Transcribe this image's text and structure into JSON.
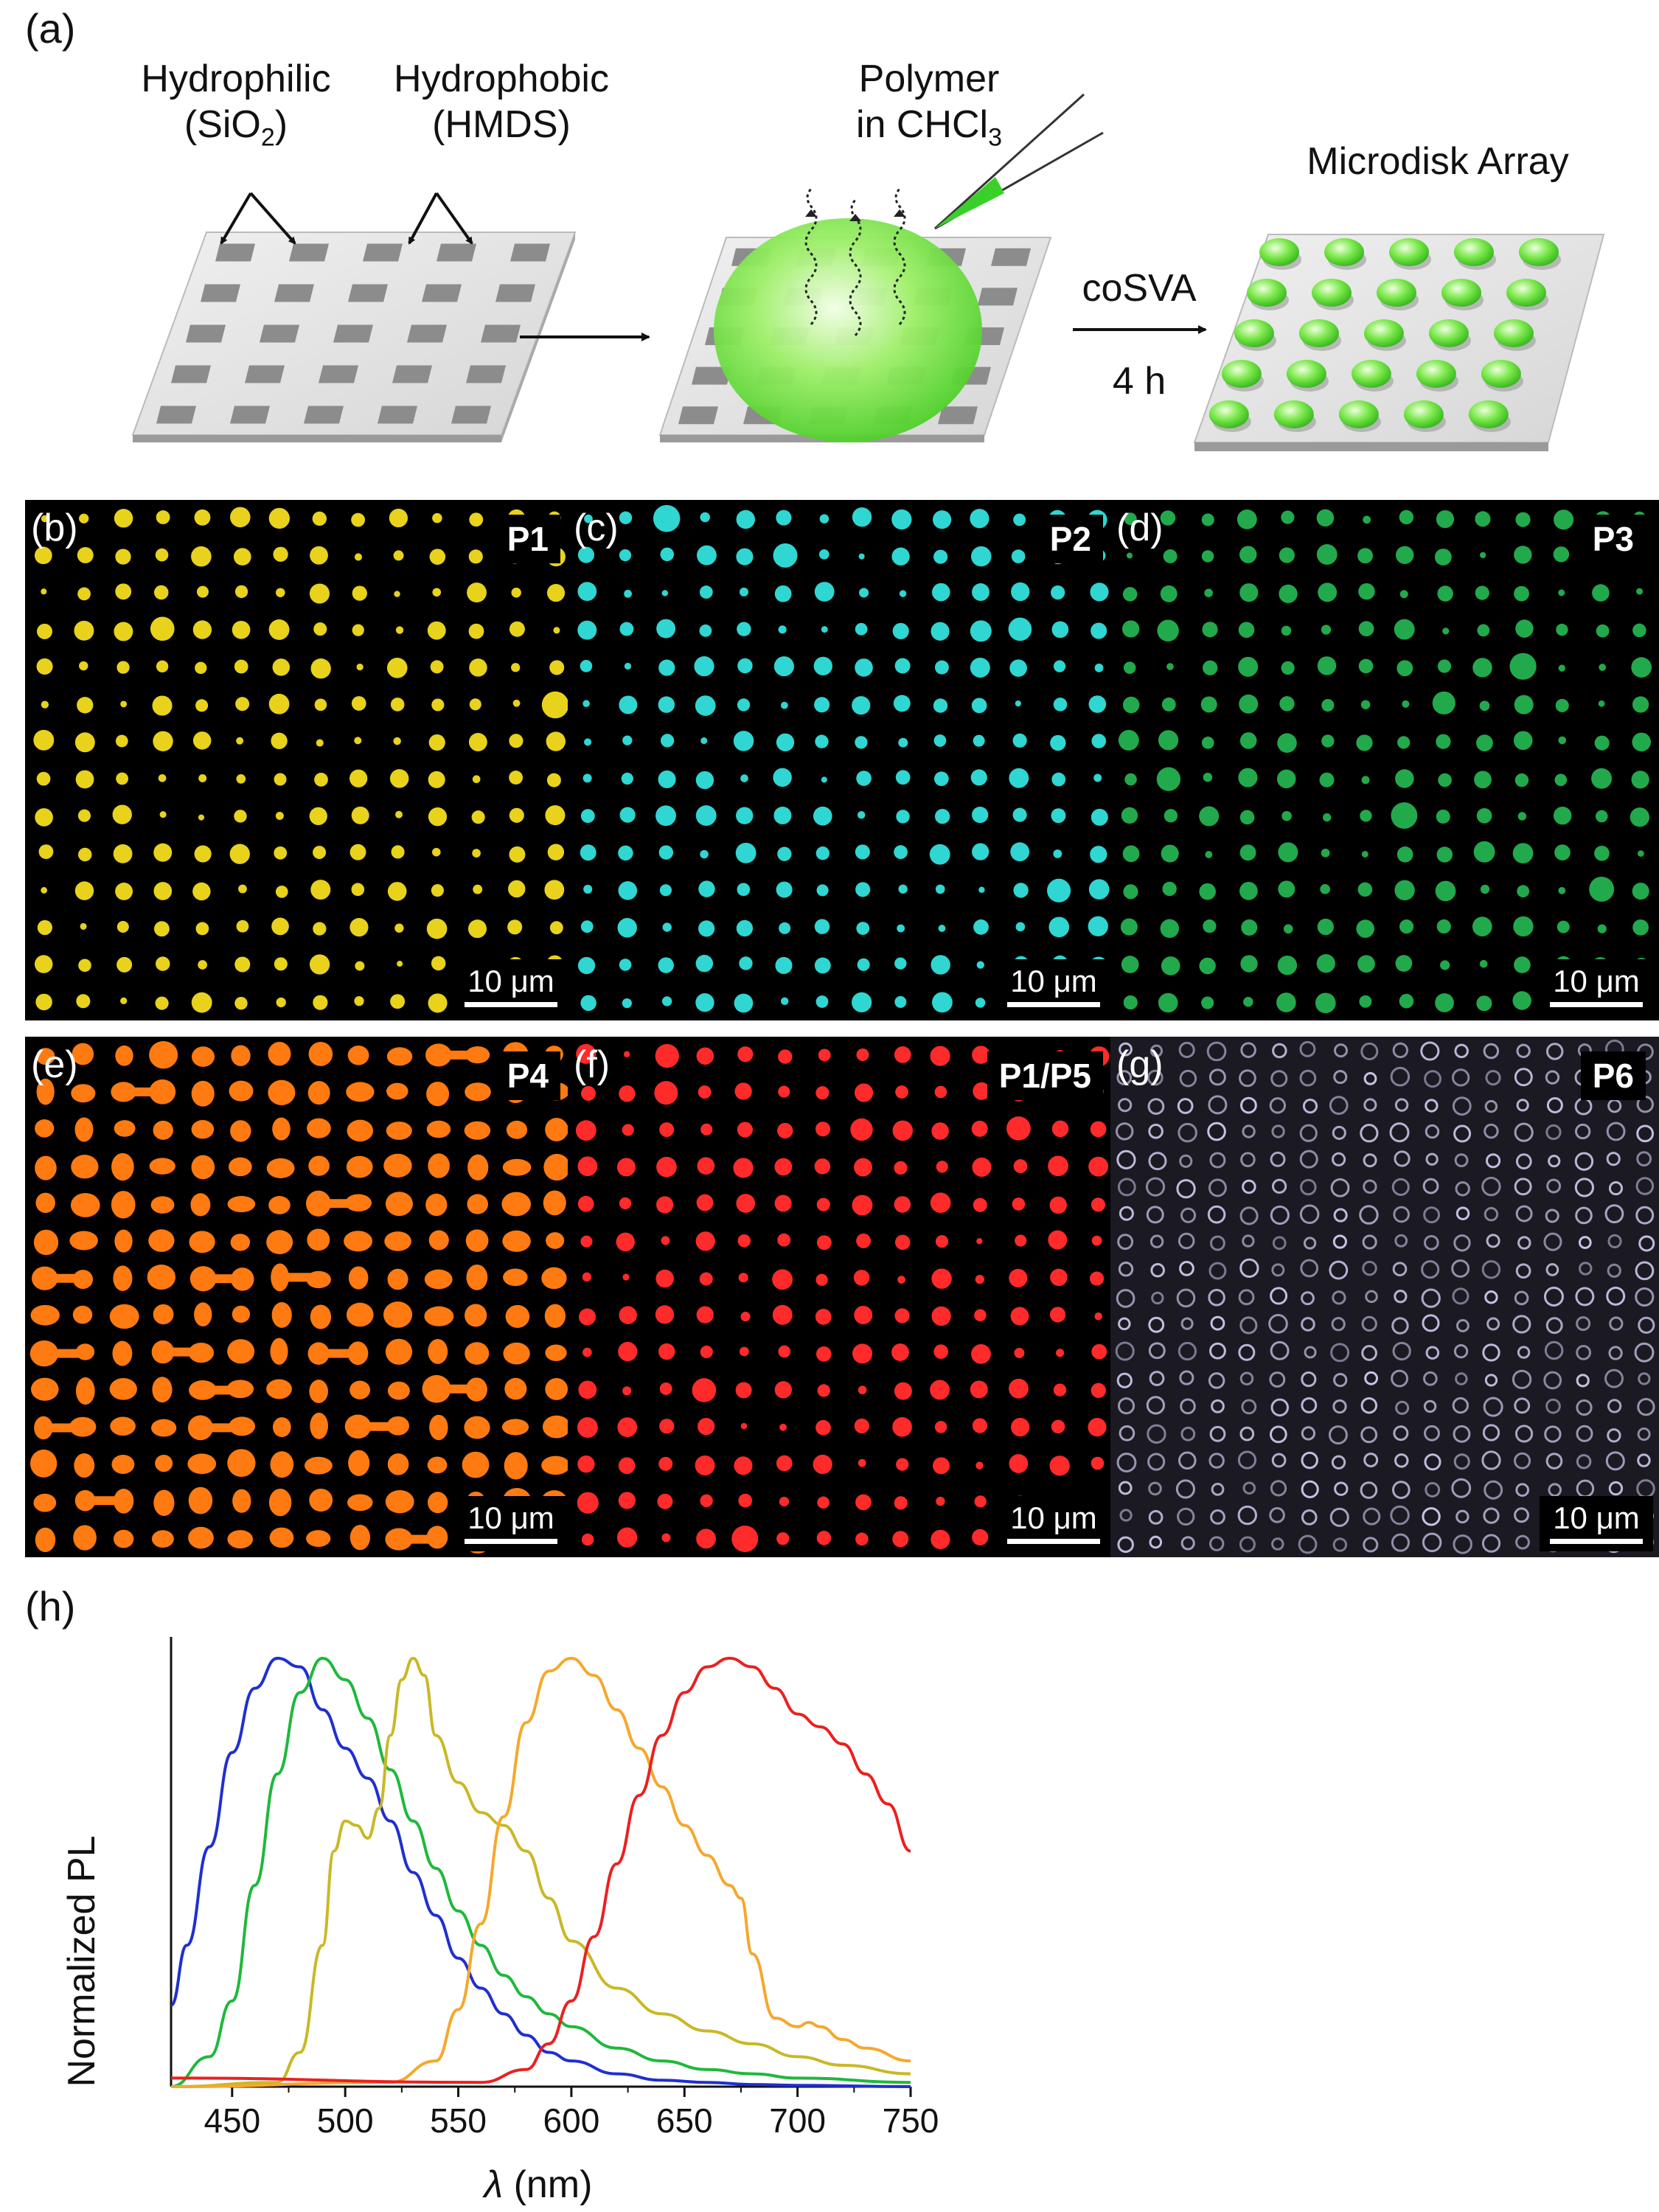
{
  "panel_a": {
    "letter": "(a)",
    "hydrophilic": "Hydrophilic",
    "hydrophilic_sub": "(SiO",
    "hydrophilic_sub_2": "2",
    "hydrophilic_sub_end": ")",
    "hydrophobic": "Hydrophobic",
    "hydrophobic_sub": "(HMDS)",
    "polymer": "Polymer",
    "polymer_sub": "in CHCl",
    "polymer_sub_3": "3",
    "process": "coSVA",
    "time": "4 h",
    "result": "Microdisk Array"
  },
  "micrographs": [
    {
      "letter": "(b)",
      "name": "P1",
      "scale": "10 μm",
      "color": "#e8d21c"
    },
    {
      "letter": "(c)",
      "name": "P2",
      "scale": "10 μm",
      "color": "#2fd6d2"
    },
    {
      "letter": "(d)",
      "name": "P3",
      "scale": "10 μm",
      "color": "#22a94c"
    },
    {
      "letter": "(e)",
      "name": "P4",
      "scale": "10 μm",
      "color": "#ff7a10"
    },
    {
      "letter": "(f)",
      "name": "P1/P5",
      "scale": "10 μm",
      "color": "#ff2a2a"
    },
    {
      "letter": "(g)",
      "name": "P6",
      "scale": "10 μm",
      "color": "#c9c2e6"
    }
  ],
  "chart_data": {
    "panel_letter": "(h)",
    "type": "line",
    "xlabel_symbol": "λ",
    "xlabel_unit": " (nm)",
    "ylabel": "Normalized PL",
    "xlim": [
      423,
      750
    ],
    "ylim": [
      0,
      1.05
    ],
    "xticks": [
      "450",
      "500",
      "550",
      "600",
      "650",
      "700",
      "750"
    ],
    "series": [
      {
        "color": "#1f2fd0",
        "x": [
          423,
          430,
          440,
          450,
          460,
          470,
          480,
          490,
          500,
          510,
          520,
          530,
          540,
          550,
          560,
          570,
          580,
          590,
          600,
          620,
          640,
          660,
          680,
          700,
          750
        ],
        "y": [
          0.19,
          0.33,
          0.56,
          0.78,
          0.93,
          1.0,
          0.98,
          0.88,
          0.79,
          0.72,
          0.62,
          0.5,
          0.4,
          0.3,
          0.23,
          0.17,
          0.12,
          0.08,
          0.06,
          0.03,
          0.015,
          0.01,
          0.005,
          0.003,
          0.0
        ]
      },
      {
        "color": "#1fb83c",
        "x": [
          423,
          440,
          450,
          460,
          470,
          480,
          490,
          500,
          510,
          520,
          530,
          540,
          550,
          560,
          570,
          580,
          590,
          600,
          620,
          640,
          660,
          680,
          700,
          750
        ],
        "y": [
          0.0,
          0.07,
          0.2,
          0.47,
          0.73,
          0.92,
          1.0,
          0.95,
          0.86,
          0.74,
          0.62,
          0.51,
          0.41,
          0.33,
          0.26,
          0.21,
          0.17,
          0.14,
          0.09,
          0.06,
          0.04,
          0.03,
          0.02,
          0.01
        ]
      },
      {
        "color": "#c9b826",
        "x": [
          423,
          470,
          480,
          490,
          495,
          500,
          505,
          510,
          515,
          520,
          525,
          530,
          535,
          540,
          550,
          560,
          570,
          580,
          590,
          600,
          620,
          640,
          660,
          680,
          700,
          720,
          750
        ],
        "y": [
          0.0,
          0.01,
          0.08,
          0.33,
          0.55,
          0.62,
          0.61,
          0.58,
          0.65,
          0.82,
          0.95,
          1.0,
          0.96,
          0.82,
          0.71,
          0.64,
          0.61,
          0.55,
          0.44,
          0.34,
          0.23,
          0.17,
          0.13,
          0.1,
          0.07,
          0.05,
          0.03
        ]
      },
      {
        "color": "#f5a82c",
        "x": [
          423,
          520,
          540,
          550,
          560,
          570,
          580,
          590,
          600,
          610,
          620,
          630,
          640,
          650,
          660,
          670,
          675,
          680,
          690,
          700,
          705,
          710,
          720,
          730,
          750
        ],
        "y": [
          0.0,
          0.01,
          0.06,
          0.18,
          0.38,
          0.63,
          0.85,
          0.97,
          1.0,
          0.96,
          0.88,
          0.79,
          0.7,
          0.61,
          0.54,
          0.47,
          0.44,
          0.31,
          0.16,
          0.14,
          0.15,
          0.14,
          0.11,
          0.09,
          0.06
        ]
      },
      {
        "color": "#ec2020",
        "x": [
          423,
          560,
          580,
          590,
          600,
          610,
          620,
          630,
          640,
          650,
          660,
          670,
          680,
          690,
          700,
          710,
          720,
          730,
          740,
          750
        ],
        "y": [
          0.02,
          0.01,
          0.04,
          0.1,
          0.2,
          0.35,
          0.52,
          0.68,
          0.82,
          0.92,
          0.98,
          1.0,
          0.98,
          0.93,
          0.87,
          0.84,
          0.8,
          0.73,
          0.66,
          0.55
        ]
      }
    ]
  }
}
